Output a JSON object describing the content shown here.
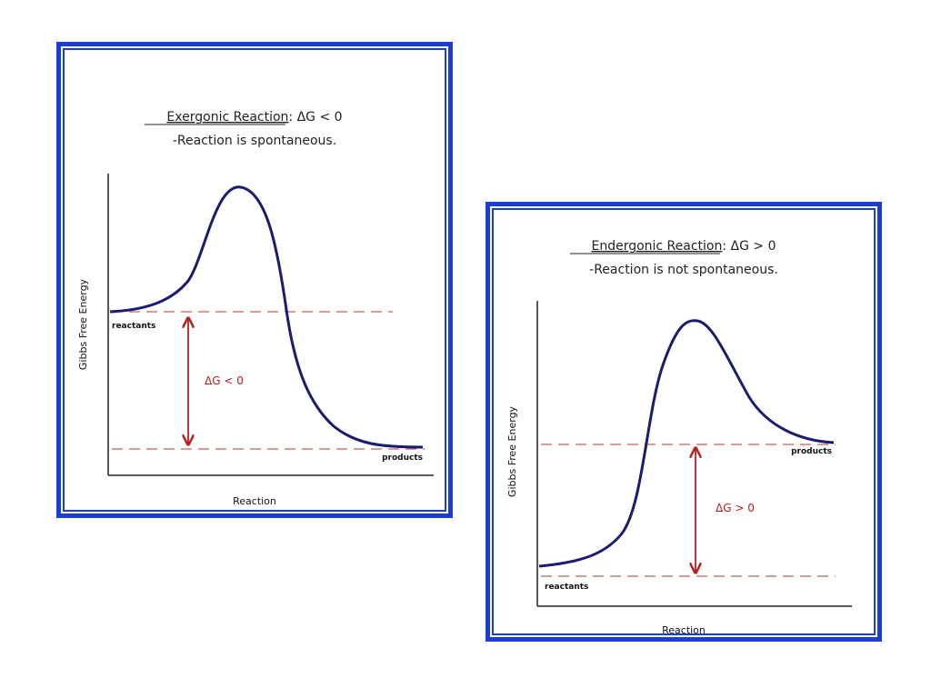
{
  "diagrams": [
    {
      "id": "exergonic",
      "title_underlined": "Exergonic Reaction",
      "title_rest": ": ΔG < 0",
      "subtitle": "-Reaction is spontaneous.",
      "y_axis_label": "Gibbs Free Energy",
      "x_axis_label": "Reaction",
      "start_label": "reactants",
      "end_label": "products",
      "delta_label": "ΔG < 0"
    },
    {
      "id": "endergonic",
      "title_underlined": "Endergonic Reaction",
      "title_rest": ": ΔG > 0",
      "subtitle": "-Reaction is not spontaneous.",
      "y_axis_label": "Gibbs Free Energy",
      "x_axis_label": "Reaction",
      "start_label": "reactants",
      "end_label": "products",
      "delta_label": "ΔG > 0"
    }
  ],
  "colors": {
    "frame": "#1a3fd0",
    "curve": "#1c1c6e",
    "dashed": "#c06060",
    "arrow": "#b22222"
  }
}
